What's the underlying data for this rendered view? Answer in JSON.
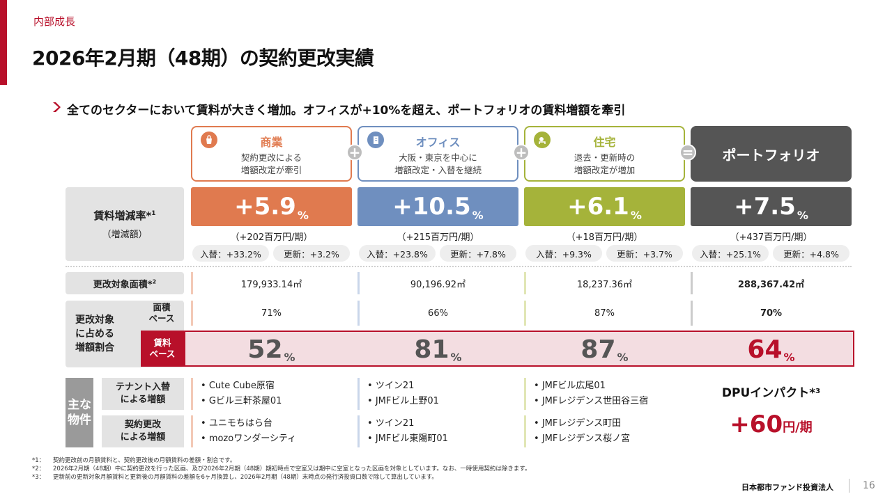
{
  "section": "内部成長",
  "title": "2026年2月期（48期）の契約更改実績",
  "subtitle": "全てのセクターにおいて賃料が大きく増加。オフィスが+10%を超え、ポートフォリオの賃料増額を牽引",
  "row_labels": {
    "rent_change": "賃料増減率*",
    "rent_change_sup": "1",
    "rent_change_sub": "（増減額）",
    "area": "更改対象面積*",
    "area_sup": "2",
    "share": "更改対象\nに占める\n増額割合",
    "share_area": "面積\nベース",
    "share_rent": "賃料\nベース",
    "properties": "主な\n物件",
    "tenant_replace": "テナント入替\nによる増額",
    "contract_renewal": "契約更改\nによる増額"
  },
  "operators": {
    "plus": "+",
    "equals": "="
  },
  "columns": [
    {
      "name": "商業",
      "desc": "契約更改による\n増額改定が牽引",
      "color": "#e07a4f",
      "icon": "shopping-bag-icon",
      "rate": "+5.9",
      "rate_unit": "%",
      "amount": "（+202百万円/期）",
      "replace": "入替：+33.2%",
      "renew": "更新：+3.2%",
      "area": "179,933.14㎡",
      "area_ratio": "71%",
      "rent_ratio": "52",
      "rent_ratio_unit": "%",
      "tenant_props": [
        "Cute Cube原宿",
        "Gビル三軒茶屋01"
      ],
      "renew_props": [
        "ユニモちはら台",
        "mozoワンダーシティ"
      ]
    },
    {
      "name": "オフィス",
      "desc": "大阪・東京を中心に\n増額改定・入替を継続",
      "color": "#6f8fbf",
      "icon": "office-building-icon",
      "rate": "+10.5",
      "rate_unit": "%",
      "amount": "（+215百万円/期）",
      "replace": "入替：+23.8%",
      "renew": "更新：+7.8%",
      "area": "90,196.92㎡",
      "area_ratio": "66%",
      "rent_ratio": "81",
      "rent_ratio_unit": "%",
      "tenant_props": [
        "ツイン21",
        "JMFビル上野01"
      ],
      "renew_props": [
        "ツイン21",
        "JMFビル東陽町01"
      ]
    },
    {
      "name": "住宅",
      "desc": "退去・更新時の\n増額改定が増加",
      "color": "#a5b33a",
      "icon": "residence-icon",
      "rate": "+6.1",
      "rate_unit": "%",
      "amount": "（+18百万円/期）",
      "replace": "入替：+9.3%",
      "renew": "更新：+3.7%",
      "area": "18,237.36㎡",
      "area_ratio": "87%",
      "rent_ratio": "87",
      "rent_ratio_unit": "%",
      "tenant_props": [
        "JMFビル広尾01",
        "JMFレジデンス世田谷三宿"
      ],
      "renew_props": [
        "JMFレジデンス町田",
        "JMFレジデンス桜ノ宮"
      ]
    },
    {
      "name": "ポートフォリオ",
      "color": "#555555",
      "rate": "+7.5",
      "rate_unit": "%",
      "amount": "（+437百万円/期）",
      "replace": "入替：+25.1%",
      "renew": "更新：+4.8%",
      "area": "288,367.42㎡",
      "area_ratio": "70%",
      "rent_ratio": "64",
      "rent_ratio_unit": "%"
    }
  ],
  "dpu": {
    "label": "DPUインパクト*",
    "sup": "3",
    "value": "+60",
    "unit": "円/期"
  },
  "footnotes": [
    {
      "mark": "*1：",
      "text": "契約更改前の月額賃料と、契約更改後の月額賃料の差額・割合です。"
    },
    {
      "mark": "*2：",
      "text": "2026年2月期（48期）中に契約更改を行った区画、及び2026年2月期（48期）期初時点で空室又は期中に空室となった区画を対象としています。なお、一時使用契約は除きます。"
    },
    {
      "mark": "*3：",
      "text": "更新前の更新対象月額賃料と更新後の月額賃料の差額を6ヶ月換算し、2026年2月期（48期）末時点の発行済投資口数で除して算出しています。"
    }
  ],
  "company": "日本都市ファンド投資法人",
  "page_number": "16",
  "colors": {
    "accent_red": "#b8102a",
    "rent_row_bg": "#f3dde1"
  }
}
